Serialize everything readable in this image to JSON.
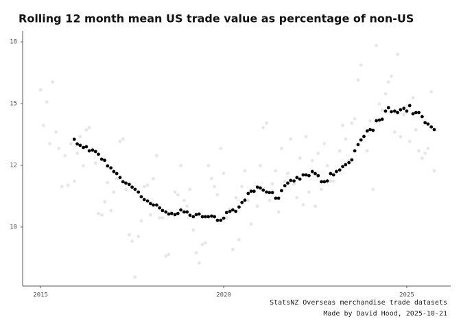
{
  "chart_data": {
    "type": "scatter",
    "title": "Rolling 12 month mean US trade value as percentage of non-US",
    "captions": [
      "StatsNZ Overseas merchandise trade datasets",
      "Made by David Hood, 2025-10-21"
    ],
    "ylog": true,
    "xlim": [
      2014.51,
      2026.2
    ],
    "ylim": [
      8.26,
      18.88
    ],
    "xticks": [
      2015,
      2020,
      2025
    ],
    "yticks": [
      {
        "value": 10,
        "label": "10"
      },
      {
        "value": 12.214,
        "label": "12"
      },
      {
        "value": 14.918,
        "label": "15"
      },
      {
        "value": 18.221,
        "label": "18"
      }
    ],
    "series": [
      {
        "color": "#e6e6e6",
        "x": [
          2015.0,
          2015.08,
          2015.17,
          2015.25,
          2015.33,
          2015.42,
          2015.5,
          2015.58,
          2015.67,
          2015.75,
          2015.83,
          2015.92,
          2016.0,
          2016.08,
          2016.17,
          2016.25,
          2016.33,
          2016.42,
          2016.5,
          2016.58,
          2016.67,
          2016.75,
          2016.83,
          2016.92,
          2017.0,
          2017.08,
          2017.17,
          2017.25,
          2017.33,
          2017.42,
          2017.5,
          2017.58,
          2017.67,
          2017.75,
          2017.83,
          2017.92,
          2018.0,
          2018.08,
          2018.17,
          2018.25,
          2018.33,
          2018.42,
          2018.5,
          2018.58,
          2018.67,
          2018.75,
          2018.83,
          2018.92,
          2019.0,
          2019.08,
          2019.17,
          2019.25,
          2019.33,
          2019.42,
          2019.5,
          2019.58,
          2019.67,
          2019.75,
          2019.83,
          2019.92,
          2020.0,
          2020.08,
          2020.17,
          2020.25,
          2020.33,
          2020.42,
          2020.5,
          2020.58,
          2020.67,
          2020.75,
          2020.83,
          2020.92,
          2021.0,
          2021.08,
          2021.17,
          2021.25,
          2021.33,
          2021.42,
          2021.5,
          2021.58,
          2021.67,
          2021.75,
          2021.83,
          2021.92,
          2022.0,
          2022.08,
          2022.17,
          2022.25,
          2022.33,
          2022.42,
          2022.5,
          2022.58,
          2022.67,
          2022.75,
          2022.83,
          2022.92,
          2023.0,
          2023.08,
          2023.17,
          2023.25,
          2023.33,
          2023.42,
          2023.5,
          2023.58,
          2023.67,
          2023.75,
          2023.83,
          2023.92,
          2024.0,
          2024.08,
          2024.17,
          2024.25,
          2024.33,
          2024.42,
          2024.5,
          2024.58,
          2024.67,
          2024.75,
          2024.83,
          2024.92,
          2025.0,
          2025.08,
          2025.17,
          2025.25,
          2025.33,
          2025.42,
          2025.5,
          2025.58,
          2025.67,
          2025.75
        ],
        "values": [
          15.6,
          13.9,
          15.0,
          13.1,
          16.0,
          13.6,
          12.9,
          11.4,
          12.6,
          11.45,
          13.1,
          11.6,
          12.7,
          13.4,
          12.2,
          13.7,
          13.8,
          12.9,
          12.3,
          10.45,
          10.4,
          10.85,
          11.55,
          10.55,
          11.2,
          11.7,
          13.2,
          13.3,
          11.3,
          9.75,
          9.55,
          8.5,
          9.7,
          10.2,
          11.4,
          11.45,
          10.4,
          11.7,
          12.6,
          10.3,
          10.3,
          9.1,
          9.15,
          10.5,
          11.2,
          11.1,
          12.2,
          10.9,
          10.7,
          11.3,
          9.9,
          9.2,
          8.9,
          9.45,
          9.5,
          12.2,
          11.7,
          11.4,
          11.1,
          12.9,
          11.9,
          10.3,
          10.6,
          9.3,
          11.0,
          9.6,
          11.4,
          12.0,
          10.9,
          10.1,
          11.2,
          10.7,
          12.2,
          13.8,
          14.0,
          10.9,
          11.5,
          12.0,
          10.5,
          12.9,
          11.6,
          11.9,
          13.3,
          11.5,
          11.0,
          12.5,
          10.75,
          13.4,
          11.2,
          12.4,
          10.7,
          12.7,
          11.3,
          13.1,
          12.2,
          11.6,
          11.6,
          12.0,
          12.8,
          13.9,
          13.3,
          12.4,
          14.0,
          14.2,
          16.1,
          16.9,
          13.4,
          12.8,
          14.1,
          11.3,
          18.0,
          14.9,
          14.6,
          15.4,
          16.0,
          16.3,
          13.6,
          17.5,
          13.4,
          14.4,
          14.8,
          13.2,
          15.2,
          13.7,
          12.8,
          12.5,
          12.7,
          12.9,
          15.5,
          12.0
        ]
      },
      {
        "color": "#000000",
        "x": [
          2015.92,
          2016.0,
          2016.08,
          2016.17,
          2016.25,
          2016.33,
          2016.42,
          2016.5,
          2016.58,
          2016.67,
          2016.75,
          2016.83,
          2016.92,
          2017.0,
          2017.08,
          2017.17,
          2017.25,
          2017.33,
          2017.42,
          2017.5,
          2017.58,
          2017.67,
          2017.75,
          2017.83,
          2017.92,
          2018.0,
          2018.08,
          2018.17,
          2018.25,
          2018.33,
          2018.42,
          2018.5,
          2018.58,
          2018.67,
          2018.75,
          2018.83,
          2018.92,
          2019.0,
          2019.08,
          2019.17,
          2019.25,
          2019.33,
          2019.42,
          2019.5,
          2019.58,
          2019.67,
          2019.75,
          2019.83,
          2019.92,
          2020.0,
          2020.08,
          2020.17,
          2020.25,
          2020.33,
          2020.42,
          2020.5,
          2020.58,
          2020.67,
          2020.75,
          2020.83,
          2020.92,
          2021.0,
          2021.08,
          2021.17,
          2021.25,
          2021.33,
          2021.42,
          2021.5,
          2021.58,
          2021.67,
          2021.75,
          2021.83,
          2021.92,
          2022.0,
          2022.08,
          2022.17,
          2022.25,
          2022.33,
          2022.42,
          2022.5,
          2022.58,
          2022.67,
          2022.75,
          2022.83,
          2022.92,
          2023.0,
          2023.08,
          2023.17,
          2023.25,
          2023.33,
          2023.42,
          2023.5,
          2023.58,
          2023.67,
          2023.75,
          2023.83,
          2023.92,
          2024.0,
          2024.08,
          2024.17,
          2024.25,
          2024.33,
          2024.42,
          2024.5,
          2024.58,
          2024.67,
          2024.75,
          2024.83,
          2024.92,
          2025.0,
          2025.08,
          2025.17,
          2025.25,
          2025.33,
          2025.42,
          2025.5,
          2025.58,
          2025.67,
          2025.75
        ],
        "values": [
          13.29,
          13.09,
          13.03,
          12.94,
          12.97,
          12.8,
          12.83,
          12.77,
          12.66,
          12.46,
          12.41,
          12.19,
          12.11,
          11.97,
          11.89,
          11.74,
          11.58,
          11.53,
          11.48,
          11.38,
          11.3,
          11.2,
          11.03,
          10.93,
          10.88,
          10.79,
          10.74,
          10.74,
          10.64,
          10.55,
          10.5,
          10.43,
          10.45,
          10.41,
          10.45,
          10.57,
          10.5,
          10.5,
          10.39,
          10.34,
          10.41,
          10.43,
          10.34,
          10.34,
          10.34,
          10.36,
          10.34,
          10.22,
          10.22,
          10.29,
          10.48,
          10.52,
          10.57,
          10.52,
          10.67,
          10.83,
          10.91,
          11.15,
          11.23,
          11.23,
          11.38,
          11.35,
          11.27,
          11.2,
          11.18,
          11.18,
          10.98,
          10.98,
          11.25,
          11.43,
          11.53,
          11.63,
          11.61,
          11.74,
          11.68,
          11.84,
          11.84,
          11.81,
          11.97,
          11.89,
          11.81,
          11.58,
          11.58,
          11.61,
          11.89,
          11.84,
          11.97,
          12.03,
          12.16,
          12.24,
          12.32,
          12.43,
          12.8,
          13.06,
          13.26,
          13.41,
          13.65,
          13.71,
          13.68,
          14.11,
          14.14,
          14.18,
          14.56,
          14.72,
          14.53,
          14.56,
          14.49,
          14.62,
          14.69,
          14.56,
          14.82,
          14.43,
          14.49,
          14.49,
          14.3,
          14.02,
          13.96,
          13.83,
          13.71
        ]
      }
    ]
  }
}
